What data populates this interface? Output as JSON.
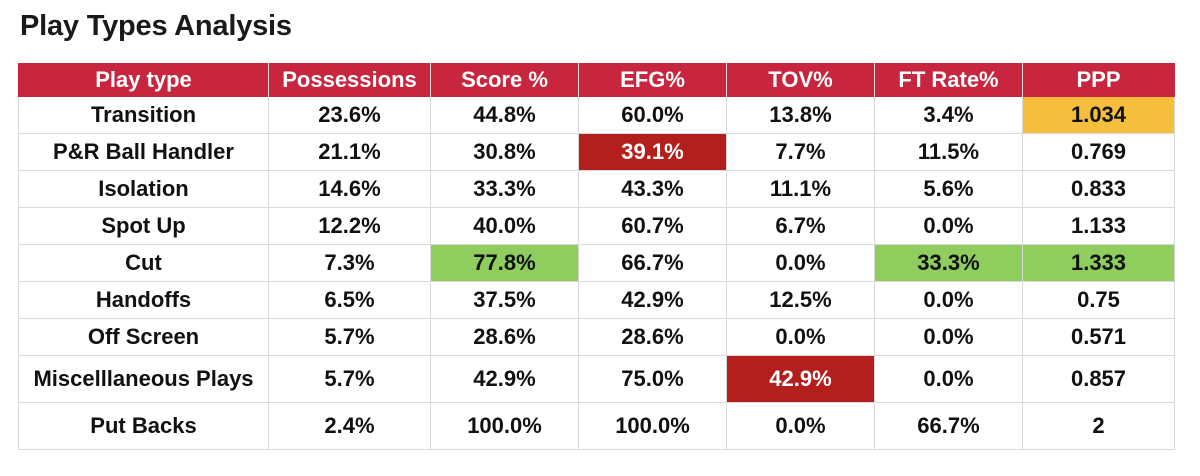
{
  "title": "Play Types Analysis",
  "colors": {
    "header_bg": "#c8263f",
    "highlight_green": "#8fcd5d",
    "highlight_red": "#b31f1c",
    "highlight_yellow": "#f5bf3d"
  },
  "chart_data": {
    "type": "table",
    "title": "Play Types Analysis",
    "columns": [
      "Play type",
      "Possessions",
      "Score %",
      "EFG%",
      "TOV%",
      "FT Rate%",
      "PPP"
    ],
    "rows": [
      [
        "Transition",
        "23.6%",
        "44.8%",
        "60.0%",
        "13.8%",
        "3.4%",
        "1.034"
      ],
      [
        "P&R Ball Handler",
        "21.1%",
        "30.8%",
        "39.1%",
        "7.7%",
        "11.5%",
        "0.769"
      ],
      [
        "Isolation",
        "14.6%",
        "33.3%",
        "43.3%",
        "11.1%",
        "5.6%",
        "0.833"
      ],
      [
        "Spot Up",
        "12.2%",
        "40.0%",
        "60.7%",
        "6.7%",
        "0.0%",
        "1.133"
      ],
      [
        "Cut",
        "7.3%",
        "77.8%",
        "66.7%",
        "0.0%",
        "33.3%",
        "1.333"
      ],
      [
        "Handoffs",
        "6.5%",
        "37.5%",
        "42.9%",
        "12.5%",
        "0.0%",
        "0.75"
      ],
      [
        "Off Screen",
        "5.7%",
        "28.6%",
        "28.6%",
        "0.0%",
        "0.0%",
        "0.571"
      ],
      [
        "Miscelllaneous Plays",
        "5.7%",
        "42.9%",
        "75.0%",
        "42.9%",
        "0.0%",
        "0.857"
      ],
      [
        "Put Backs",
        "2.4%",
        "100.0%",
        "100.0%",
        "0.0%",
        "66.7%",
        "2"
      ]
    ],
    "highlights": [
      {
        "row": 0,
        "col": 6,
        "color": "yellow"
      },
      {
        "row": 1,
        "col": 3,
        "color": "red"
      },
      {
        "row": 4,
        "col": 2,
        "color": "green"
      },
      {
        "row": 4,
        "col": 5,
        "color": "green"
      },
      {
        "row": 4,
        "col": 6,
        "color": "green"
      },
      {
        "row": 7,
        "col": 4,
        "color": "red"
      }
    ]
  }
}
